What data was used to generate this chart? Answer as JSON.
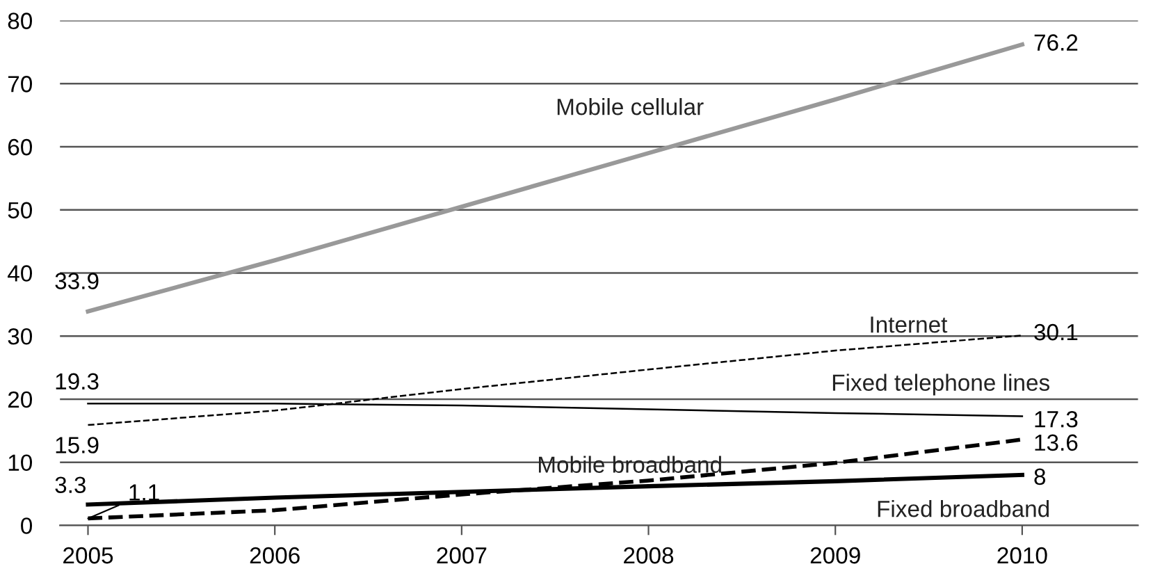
{
  "chart_data": {
    "type": "line",
    "x": [
      2005,
      2006,
      2007,
      2008,
      2009,
      2010
    ],
    "xlim": [
      2004.85,
      2010.62
    ],
    "xticks": [
      2005,
      2006,
      2007,
      2008,
      2009,
      2010
    ],
    "ylim": [
      0,
      80
    ],
    "yticks": [
      0,
      10,
      20,
      30,
      40,
      50,
      60,
      70,
      80
    ],
    "grid": "y",
    "legend": false,
    "series": [
      {
        "name": "Mobile cellular",
        "color": "#999999",
        "line_style": "solid",
        "values": [
          33.9,
          42,
          50.5,
          59,
          67.5,
          76.2
        ],
        "value_labels": [
          "33.9",
          null,
          null,
          null,
          null,
          "76.2"
        ]
      },
      {
        "name": "Internet",
        "color": "#000000",
        "line_style": "dashed",
        "values": [
          15.9,
          18.2,
          21.6,
          24.7,
          27.7,
          30.1
        ],
        "value_labels": [
          "15.9",
          null,
          null,
          null,
          null,
          "30.1"
        ]
      },
      {
        "name": "Fixed telephone lines",
        "color": "#000000",
        "line_style": "solid",
        "values": [
          19.3,
          19.3,
          19.0,
          18.4,
          17.8,
          17.3
        ],
        "value_labels": [
          "19.3",
          null,
          null,
          null,
          null,
          "17.3"
        ]
      },
      {
        "name": "Mobile broadband",
        "color": "#000000",
        "line_style": "dashed",
        "values": [
          1.1,
          2.4,
          4.9,
          7.1,
          9.9,
          13.6
        ],
        "value_labels": [
          "1.1",
          null,
          null,
          null,
          null,
          "13.6"
        ]
      },
      {
        "name": "Fixed broadband",
        "color": "#000000",
        "line_style": "solid",
        "values": [
          3.3,
          4.4,
          5.3,
          6.2,
          7.0,
          8
        ],
        "value_labels": [
          "3.3",
          null,
          null,
          null,
          null,
          "8"
        ]
      }
    ]
  }
}
